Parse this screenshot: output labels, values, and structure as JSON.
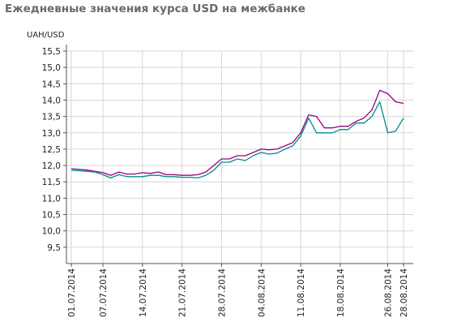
{
  "title": "Ежедневные значения курса USD на межбанке",
  "chart_data": {
    "type": "line",
    "title": "Ежедневные значения курса USD на межбанке",
    "ylabel": "UAH/USD",
    "xlabel": "",
    "ylim": [
      9.0,
      15.5
    ],
    "yticks": [
      "9,5",
      "10,0",
      "10,5",
      "11,0",
      "11,5",
      "12,0",
      "12,5",
      "13,0",
      "13,5",
      "14,0",
      "14,5",
      "15,0",
      "15,5"
    ],
    "grid": true,
    "x_tick_labels": [
      "01.07.2014",
      "07.07.2014",
      "14.07.2014",
      "21.07.2014",
      "28.07.2014",
      "04.08.2014",
      "11.08.2014",
      "18.08.2014",
      "26.08.2014",
      "28.08.2014"
    ],
    "x": [
      "01.07.2014",
      "02.07.2014",
      "03.07.2014",
      "04.07.2014",
      "07.07.2014",
      "08.07.2014",
      "09.07.2014",
      "10.07.2014",
      "11.07.2014",
      "14.07.2014",
      "15.07.2014",
      "16.07.2014",
      "17.07.2014",
      "18.07.2014",
      "21.07.2014",
      "22.07.2014",
      "23.07.2014",
      "24.07.2014",
      "25.07.2014",
      "28.07.2014",
      "29.07.2014",
      "30.07.2014",
      "31.07.2014",
      "01.08.2014",
      "04.08.2014",
      "05.08.2014",
      "06.08.2014",
      "07.08.2014",
      "08.08.2014",
      "11.08.2014",
      "12.08.2014",
      "13.08.2014",
      "14.08.2014",
      "15.08.2014",
      "18.08.2014",
      "19.08.2014",
      "20.08.2014",
      "21.08.2014",
      "22.08.2014",
      "25.08.2014",
      "26.08.2014",
      "27.08.2014",
      "28.08.2014"
    ],
    "series": [
      {
        "name": "",
        "color": "#99007f",
        "values": [
          11.9,
          11.88,
          11.86,
          11.82,
          11.78,
          11.7,
          11.8,
          11.74,
          11.74,
          11.78,
          11.76,
          11.8,
          11.72,
          11.72,
          11.7,
          11.7,
          11.72,
          11.8,
          12.0,
          12.2,
          12.2,
          12.3,
          12.3,
          12.4,
          12.5,
          12.48,
          12.5,
          12.6,
          12.7,
          13.0,
          13.55,
          13.5,
          13.15,
          13.15,
          13.2,
          13.2,
          13.35,
          13.45,
          13.7,
          14.3,
          14.2,
          13.95,
          13.9
        ]
      },
      {
        "name": "",
        "color": "#008b8b",
        "values": [
          11.85,
          11.84,
          11.82,
          11.8,
          11.72,
          11.62,
          11.72,
          11.66,
          11.66,
          11.66,
          11.7,
          11.7,
          11.66,
          11.66,
          11.64,
          11.64,
          11.62,
          11.7,
          11.85,
          12.1,
          12.1,
          12.2,
          12.15,
          12.3,
          12.4,
          12.35,
          12.38,
          12.5,
          12.6,
          12.9,
          13.45,
          13.0,
          13.0,
          13.0,
          13.1,
          13.1,
          13.3,
          13.3,
          13.5,
          13.95,
          13.0,
          13.05,
          13.45
        ]
      }
    ]
  }
}
